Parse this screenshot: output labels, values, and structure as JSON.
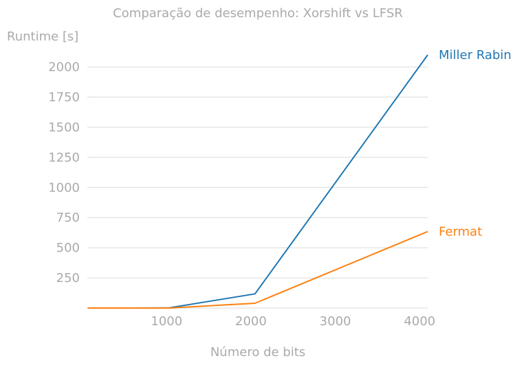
{
  "chart_data": {
    "type": "line",
    "title": "Comparação de desempenho: Xorshift vs LFSR",
    "xlabel": "Número de bits",
    "ylabel": "Runtime [s]",
    "xlim": [
      60,
      4096
    ],
    "ylim": [
      0,
      2100
    ],
    "xticks": [
      1000,
      2000,
      3000,
      4000
    ],
    "yticks": [
      250,
      500,
      750,
      1000,
      1250,
      1500,
      1750,
      2000
    ],
    "grid": "horizontal",
    "legend": "inline-right",
    "series": [
      {
        "name": "Miller Rabin",
        "color": "#1f77b4",
        "x": [
          64,
          128,
          256,
          512,
          1024,
          2048,
          4096
        ],
        "y": [
          0,
          0,
          0,
          0,
          1,
          118,
          2100
        ]
      },
      {
        "name": "Fermat",
        "color": "#ff7f0e",
        "x": [
          64,
          128,
          256,
          512,
          1024,
          2048,
          4096
        ],
        "y": [
          0,
          0,
          0,
          0,
          0,
          40,
          635
        ]
      }
    ]
  }
}
